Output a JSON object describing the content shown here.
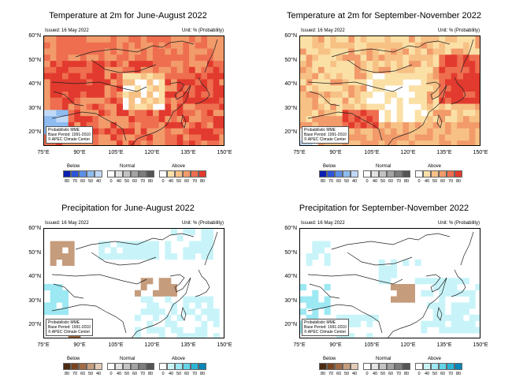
{
  "panels": [
    {
      "title": "Temperature at 2m for June-August 2022",
      "issued": "Issued: 16 May 2022",
      "unit": "Unit: % (Probability)",
      "info": [
        "Probabilistic MME",
        "Base Period: 1991-2010",
        "© APEC Climate Center"
      ],
      "yticks": [
        "60°N",
        "50°N",
        "40°N",
        "30°N",
        "20°N"
      ],
      "xticks": [
        "75°E",
        "90°E",
        "105°E",
        "120°E",
        "135°E",
        "150°E"
      ],
      "variable": "temperature"
    },
    {
      "title": "Temperature at 2m for September-November 2022",
      "issued": "Issued: 16 May 2022",
      "unit": "Unit: % (Probability)",
      "info": [
        "Probabilistic MME",
        "Base Period: 1991-2010",
        "© APEC Climate Center"
      ],
      "yticks": [
        "60°N",
        "50°N",
        "40°N",
        "30°N",
        "20°N"
      ],
      "xticks": [
        "75°E",
        "90°E",
        "105°E",
        "120°E",
        "135°E",
        "150°E"
      ],
      "variable": "temperature"
    },
    {
      "title": "Precipitation for June-August 2022",
      "issued": "Issued: 16 May 2022",
      "unit": "Unit: % (Probability)",
      "info": [
        "Probabilistic MME",
        "Base Period: 1991-2010",
        "© APEC Climate Center"
      ],
      "yticks": [
        "60°N",
        "50°N",
        "40°N",
        "30°N",
        "20°N"
      ],
      "xticks": [
        "75°E",
        "90°E",
        "105°E",
        "120°E",
        "135°E",
        "150°E"
      ],
      "variable": "precipitation"
    },
    {
      "title": "Precipitation for September-November 2022",
      "issued": "Issued: 16 May 2022",
      "unit": "Unit: % (Probability)",
      "info": [
        "Probabilistic MME",
        "Base Period: 1991-2010",
        "© APEC Climate Center"
      ],
      "yticks": [
        "60°N",
        "50°N",
        "40°N",
        "30°N",
        "20°N"
      ],
      "xticks": [
        "75°E",
        "90°E",
        "105°E",
        "120°E",
        "135°E",
        "150°E"
      ],
      "variable": "precipitation"
    }
  ],
  "legend": {
    "below": "Below",
    "normal": "Normal",
    "above": "Above",
    "below_ticks": [
      "80",
      "70",
      "60",
      "50",
      "40"
    ],
    "normal_ticks": [
      "0",
      "40",
      "50",
      "60",
      "70",
      "80"
    ],
    "above_ticks": [
      "0",
      "40",
      "50",
      "60",
      "70",
      "80"
    ],
    "temperature_colors": {
      "below": [
        "#0a1fb0",
        "#2c55d8",
        "#5b8ee8",
        "#8ebbf0",
        "#bfd9f6"
      ],
      "normal": [
        "#ffffff",
        "#e3e3e3",
        "#c4c4c4",
        "#a3a3a3",
        "#7d7d7d",
        "#545454"
      ],
      "above": [
        "#ffffff",
        "#fbe0a6",
        "#f7c185",
        "#f29a6a",
        "#ee6e4f",
        "#e23a2e"
      ]
    },
    "precipitation_colors": {
      "below": [
        "#4a2a12",
        "#7a4520",
        "#a16b45",
        "#c59c7c",
        "#e3cbb7"
      ],
      "normal": [
        "#ffffff",
        "#e3e3e3",
        "#c4c4c4",
        "#a3a3a3",
        "#7d7d7d",
        "#545454"
      ],
      "above": [
        "#ffffff",
        "#c8f4f9",
        "#9ce8f3",
        "#64d4ea",
        "#2bb4d6",
        "#0a86b8"
      ]
    }
  }
}
